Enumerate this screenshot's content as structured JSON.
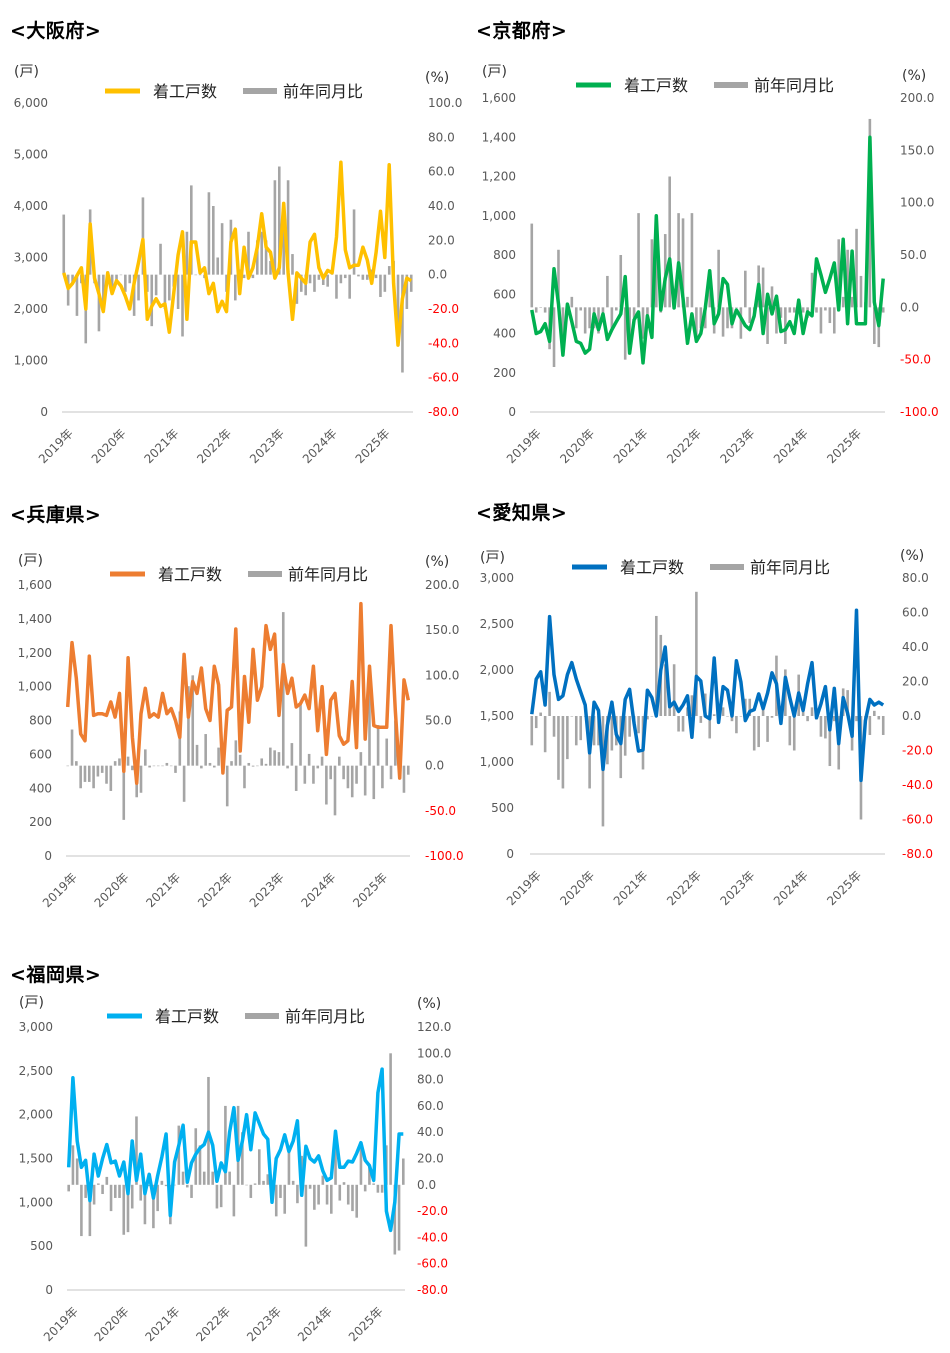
{
  "legend": {
    "line": "着工戸数",
    "bar": "前年同月比"
  },
  "bar_color": "#A5A5A5",
  "chart_data": [
    {
      "type": "bar+line",
      "title": "<大阪府>",
      "left_unit": "(戸)",
      "right_unit": "(%)",
      "line_color": "#FFC000",
      "x_start": "2019-01",
      "x_interval": "month",
      "x_tick_labels": [
        "2019年",
        "2020年",
        "2021年",
        "2022年",
        "2023年",
        "2024年",
        "2025年"
      ],
      "left_ylim": [
        0,
        6000
      ],
      "left_ticks": [
        "0",
        "1,000",
        "2,000",
        "3,000",
        "4,000",
        "5,000",
        "6,000"
      ],
      "right_ylim": [
        -80,
        100
      ],
      "right_ticks": [
        "-80.0",
        "-60.0",
        "-40.0",
        "-20.0",
        "0.0",
        "20.0",
        "40.0",
        "60.0",
        "80.0",
        "100.0"
      ],
      "series": [
        {
          "name": "着工戸数",
          "axis": "left",
          "kind": "line",
          "values": [
            2700,
            2400,
            2500,
            2650,
            2800,
            2000,
            3650,
            2600,
            2300,
            1950,
            2700,
            2300,
            2550,
            2450,
            2250,
            2000,
            2500,
            2900,
            3350,
            1800,
            2050,
            2200,
            2050,
            2100,
            1550,
            2300,
            3050,
            3500,
            1800,
            3300,
            3300,
            2700,
            2800,
            2300,
            2500,
            1950,
            2150,
            1950,
            3300,
            3550,
            2300,
            3200,
            2600,
            2800,
            3200,
            3850,
            3200,
            3100,
            2600,
            2800,
            4050,
            2700,
            1800,
            2700,
            2600,
            2500,
            3300,
            3450,
            2800,
            2600,
            2750,
            2700,
            3400,
            4850,
            3150,
            2800,
            2850,
            2850,
            3200,
            2950,
            2500,
            3100,
            3900,
            3000,
            4800,
            2500,
            1300,
            2200,
            2600,
            2550
          ]
        },
        {
          "name": "前年同月比",
          "axis": "right",
          "kind": "bar",
          "values": [
            35,
            -18,
            -5,
            -24,
            -5,
            -40,
            38,
            -5,
            -33,
            -22,
            2,
            -10,
            -5,
            0,
            -10,
            -5,
            -24,
            -15,
            45,
            -10,
            -30,
            -12,
            18,
            -20,
            -15,
            -7,
            -20,
            -36,
            25,
            52,
            0,
            0,
            -2,
            48,
            40,
            10,
            30,
            -10,
            32,
            -15,
            3,
            -2,
            25,
            -2,
            20,
            25,
            20,
            8,
            55,
            63,
            33,
            55,
            12,
            -17,
            -10,
            -12,
            -5,
            -10,
            -3,
            -6,
            -7,
            3,
            -14,
            -5,
            -2,
            -14,
            38,
            -1,
            -3,
            -3,
            3,
            -2,
            -13,
            -10,
            5,
            8,
            -30,
            -57,
            -20,
            -10
          ]
        }
      ]
    },
    {
      "type": "bar+line",
      "title": "<京都府>",
      "left_unit": "(戸)",
      "right_unit": "(%)",
      "line_color": "#00B050",
      "x_start": "2019-01",
      "x_interval": "month",
      "x_tick_labels": [
        "2019年",
        "2020年",
        "2021年",
        "2022年",
        "2023年",
        "2024年",
        "2025年"
      ],
      "left_ylim": [
        0,
        1600
      ],
      "left_ticks": [
        "0",
        "200",
        "400",
        "600",
        "800",
        "1,000",
        "1,200",
        "1,400",
        "1,600"
      ],
      "right_ylim": [
        -100,
        200
      ],
      "right_ticks": [
        "-100.0",
        "-50.0",
        "0.0",
        "50.0",
        "100.0",
        "150.0",
        "200.0"
      ],
      "series": [
        {
          "name": "着工戸数",
          "axis": "left",
          "kind": "line",
          "values": [
            520,
            400,
            410,
            450,
            360,
            730,
            550,
            290,
            550,
            460,
            360,
            350,
            300,
            320,
            500,
            420,
            500,
            370,
            420,
            460,
            500,
            690,
            300,
            470,
            510,
            250,
            490,
            380,
            1000,
            520,
            680,
            780,
            530,
            760,
            580,
            350,
            500,
            360,
            400,
            530,
            720,
            450,
            500,
            680,
            650,
            450,
            520,
            480,
            440,
            420,
            490,
            650,
            400,
            600,
            500,
            590,
            410,
            420,
            460,
            400,
            570,
            400,
            510,
            490,
            780,
            700,
            610,
            680,
            760,
            520,
            880,
            450,
            820,
            450,
            450,
            450,
            1400,
            560,
            440,
            680
          ]
        },
        {
          "name": "前年同月比",
          "axis": "right",
          "kind": "bar",
          "values": [
            80,
            -5,
            0,
            -5,
            -40,
            -57,
            55,
            -30,
            -5,
            10,
            -20,
            -3,
            -25,
            -20,
            -20,
            -25,
            -10,
            30,
            -20,
            -3,
            50,
            -50,
            -30,
            -10,
            90,
            -30,
            -10,
            65,
            70,
            -5,
            70,
            125,
            0,
            90,
            85,
            10,
            90,
            -30,
            -20,
            -20,
            25,
            -25,
            55,
            -28,
            -20,
            -20,
            0,
            -30,
            35,
            -15,
            -10,
            40,
            38,
            -35,
            20,
            -25,
            -10,
            -35,
            -5,
            -5,
            -5,
            -5,
            -10,
            33,
            -5,
            -25,
            -3,
            -15,
            -25,
            65,
            10,
            55,
            10,
            75,
            30,
            5,
            180,
            -35,
            -38,
            -5
          ]
        }
      ]
    },
    {
      "type": "bar+line",
      "title": "<兵庫県>",
      "left_unit": "(戸)",
      "right_unit": "(%)",
      "line_color": "#ED7D31",
      "x_start": "2019-01",
      "x_interval": "month",
      "x_tick_labels": [
        "2019年",
        "2020年",
        "2021年",
        "2022年",
        "2023年",
        "2024年",
        "2025年"
      ],
      "left_ylim": [
        0,
        1600
      ],
      "left_ticks": [
        "0",
        "200",
        "400",
        "600",
        "800",
        "1,000",
        "1,200",
        "1,400",
        "1,600"
      ],
      "right_ylim": [
        -100,
        200
      ],
      "right_ticks": [
        "-100.0",
        "-50.0",
        "0.0",
        "50.0",
        "100.0",
        "150.0",
        "200.0"
      ],
      "series": [
        {
          "name": "着工戸数",
          "axis": "left",
          "kind": "line",
          "values": [
            880,
            1260,
            1050,
            720,
            680,
            1180,
            830,
            840,
            840,
            830,
            910,
            820,
            960,
            500,
            1170,
            700,
            430,
            840,
            990,
            820,
            840,
            820,
            960,
            840,
            870,
            800,
            700,
            1190,
            820,
            1030,
            960,
            1110,
            870,
            800,
            1120,
            1010,
            490,
            860,
            880,
            1340,
            620,
            1060,
            790,
            1220,
            920,
            1000,
            1360,
            1220,
            1310,
            830,
            1130,
            960,
            1050,
            880,
            900,
            950,
            870,
            1120,
            740,
            1000,
            600,
            920,
            960,
            710,
            660,
            680,
            1030,
            640,
            1490,
            690,
            1120,
            770,
            760,
            760,
            760,
            1360,
            860,
            460,
            1040,
            920
          ]
        },
        {
          "name": "前年同月比",
          "axis": "right",
          "kind": "bar",
          "values": [
            0,
            40,
            5,
            -25,
            -18,
            -18,
            -25,
            -12,
            -8,
            -20,
            -28,
            5,
            8,
            -60,
            10,
            -5,
            -35,
            -30,
            18,
            -2,
            0,
            0,
            0,
            3,
            0,
            -8,
            60,
            -40,
            88,
            100,
            23,
            -3,
            35,
            3,
            -2,
            20,
            22,
            -45,
            5,
            28,
            12,
            -25,
            3,
            -1,
            0,
            8,
            2,
            20,
            17,
            15,
            170,
            -3,
            25,
            -28,
            68,
            -20,
            13,
            -20,
            -3,
            10,
            -43,
            -15,
            -55,
            10,
            -15,
            -25,
            -35,
            -20,
            15,
            -33,
            90,
            -37,
            45,
            -25,
            30,
            -15,
            50,
            3,
            -30,
            -10
          ]
        }
      ]
    },
    {
      "type": "bar+line",
      "title": "<愛知県>",
      "left_unit": "(戸)",
      "right_unit": "(%)",
      "line_color": "#0070C0",
      "x_start": "2019-01",
      "x_interval": "month",
      "x_tick_labels": [
        "2019年",
        "2020年",
        "2021年",
        "2022年",
        "2023年",
        "2024年",
        "2025年"
      ],
      "left_ylim": [
        0,
        3000
      ],
      "left_ticks": [
        "0",
        "500",
        "1,000",
        "1,500",
        "2,000",
        "2,500",
        "3,000"
      ],
      "right_ylim": [
        -80,
        80
      ],
      "right_ticks": [
        "-80.0",
        "-60.0",
        "-40.0",
        "-20.0",
        "0.0",
        "20.0",
        "40.0",
        "60.0",
        "80.0"
      ],
      "series": [
        {
          "name": "着工戸数",
          "axis": "left",
          "kind": "line",
          "values": [
            1520,
            1900,
            1980,
            1620,
            2580,
            1950,
            1680,
            1720,
            1950,
            2080,
            1900,
            1760,
            1620,
            1100,
            1650,
            1560,
            920,
            1400,
            1650,
            1300,
            1200,
            1680,
            1790,
            1420,
            1120,
            1130,
            1780,
            1700,
            1500,
            2000,
            2250,
            1600,
            1650,
            1550,
            1620,
            1720,
            1270,
            1930,
            1880,
            1500,
            1470,
            2130,
            1430,
            1820,
            1780,
            1500,
            2100,
            1870,
            1450,
            1550,
            1570,
            1740,
            1580,
            1750,
            1970,
            1850,
            1420,
            1920,
            1700,
            1500,
            1750,
            1560,
            1850,
            2080,
            1480,
            1630,
            1820,
            1350,
            1800,
            1200,
            1700,
            1530,
            1280,
            2650,
            800,
            1450,
            1680,
            1620,
            1650,
            1620
          ]
        },
        {
          "name": "前年同月比",
          "axis": "right",
          "kind": "bar",
          "values": [
            -17,
            -7,
            2,
            -21,
            14,
            -12,
            -37,
            -42,
            -25,
            0,
            -17,
            -14,
            0,
            -42,
            -17,
            -17,
            -64,
            -28,
            -20,
            -17,
            -36,
            -23,
            -12,
            -4,
            -10,
            -31,
            -2,
            0,
            58,
            47,
            30,
            10,
            30,
            -9,
            -9,
            5,
            12,
            72,
            -4,
            13,
            -13,
            1,
            3,
            5,
            0,
            -3,
            -10,
            0,
            10,
            10,
            -20,
            -18,
            5,
            -15,
            -1,
            35,
            5,
            27,
            -17,
            -20,
            24,
            3,
            -3,
            5,
            -2,
            -12,
            -13,
            -29,
            -3,
            -31,
            16,
            15,
            -20,
            -3,
            -60,
            -3,
            -11,
            3,
            -2,
            -11
          ]
        }
      ]
    },
    {
      "type": "bar+line",
      "title": "<福岡県>",
      "left_unit": "(戸)",
      "right_unit": "(%)",
      "line_color": "#00B0F0",
      "x_start": "2019-01",
      "x_interval": "month",
      "x_tick_labels": [
        "2019年",
        "2020年",
        "2021年",
        "2022年",
        "2023年",
        "2024年",
        "2025年"
      ],
      "left_ylim": [
        0,
        3000
      ],
      "left_ticks": [
        "0",
        "500",
        "1,000",
        "1,500",
        "2,000",
        "2,500",
        "3,000"
      ],
      "right_ylim": [
        -80,
        120
      ],
      "right_ticks": [
        "-80.0",
        "-60.0",
        "-40.0",
        "-20.0",
        "0.0",
        "20.0",
        "40.0",
        "60.0",
        "80.0",
        "100.0",
        "120.0"
      ],
      "series": [
        {
          "name": "着工戸数",
          "axis": "left",
          "kind": "line",
          "values": [
            1400,
            2420,
            1700,
            1400,
            1480,
            1020,
            1550,
            1300,
            1500,
            1660,
            1450,
            1470,
            1300,
            1460,
            1100,
            1700,
            1250,
            1550,
            1100,
            1320,
            1050,
            1300,
            1520,
            1780,
            850,
            1460,
            1650,
            1880,
            1230,
            1450,
            1550,
            1620,
            1660,
            1800,
            1650,
            1240,
            1450,
            1350,
            1800,
            2080,
            1480,
            1700,
            2000,
            1600,
            2020,
            1900,
            1780,
            1720,
            1000,
            1500,
            1600,
            1770,
            1580,
            1700,
            1930,
            1080,
            1640,
            1500,
            1460,
            1530,
            1360,
            1250,
            1280,
            1810,
            1400,
            1400,
            1470,
            1460,
            1560,
            1680,
            1480,
            1420,
            1250,
            2250,
            2520,
            900,
            680,
            1000,
            1780,
            1780
          ]
        },
        {
          "name": "前年同月比",
          "axis": "right",
          "kind": "bar",
          "values": [
            -5,
            30,
            20,
            -39,
            -10,
            -39,
            -15,
            1,
            -7,
            6,
            -20,
            -10,
            -10,
            -38,
            -36,
            -18,
            52,
            -12,
            -30,
            -1,
            -33,
            -20,
            3,
            -1,
            -30,
            0,
            45,
            10,
            -2,
            -10,
            43,
            30,
            10,
            82,
            10,
            -18,
            -17,
            60,
            10,
            -24,
            60,
            40,
            0,
            -10,
            1,
            27,
            3,
            8,
            -1,
            -24,
            -10,
            -22,
            27,
            3,
            -14,
            22,
            -47,
            -3,
            -19,
            -15,
            7,
            -15,
            -22,
            28,
            -12,
            2,
            -15,
            -20,
            -25,
            30,
            -5,
            15,
            1,
            -6,
            -6,
            30,
            100,
            -53,
            -50,
            20
          ]
        }
      ]
    }
  ]
}
